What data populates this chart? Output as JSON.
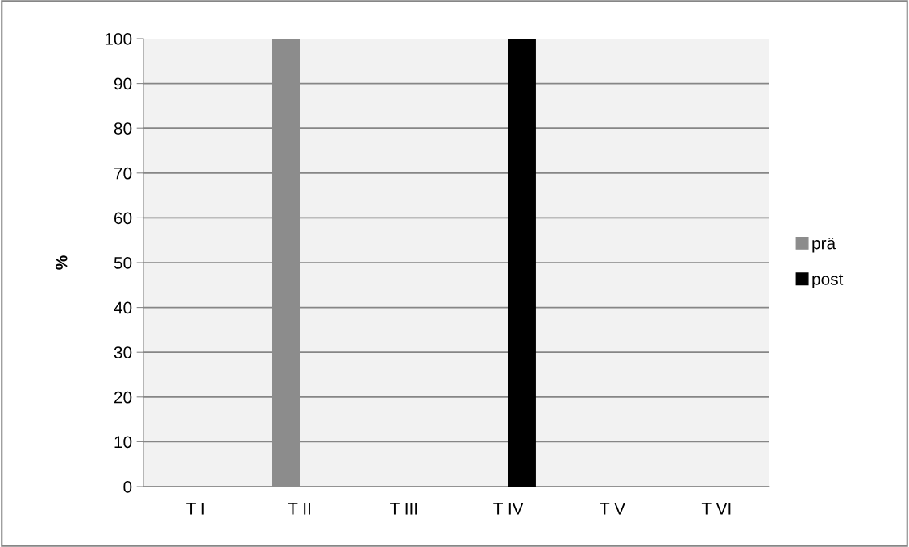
{
  "chart_data": {
    "type": "bar",
    "ylabel": "%",
    "categories": [
      "T I",
      "T II",
      "T III",
      "T IV",
      "T V",
      "T VI"
    ],
    "series": [
      {
        "name": "prä",
        "color": "#8c8c8c",
        "values": [
          0,
          100,
          0,
          0,
          0,
          0
        ]
      },
      {
        "name": "post",
        "color": "#000000",
        "values": [
          0,
          0,
          0,
          100,
          0,
          0
        ]
      }
    ],
    "ylim": [
      0,
      100
    ],
    "yticks": [
      0,
      10,
      20,
      30,
      40,
      50,
      60,
      70,
      80,
      90,
      100
    ],
    "grid": "y",
    "legend": "right"
  }
}
